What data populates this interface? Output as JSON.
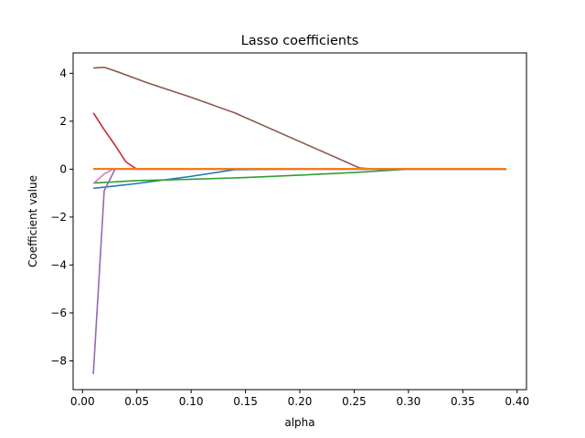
{
  "chart_data": {
    "type": "line",
    "title": "Lasso coefficients",
    "xlabel": "alpha",
    "ylabel": "Coefficient value",
    "xlim": [
      -0.0086,
      0.4086
    ],
    "ylim": [
      -9.2,
      4.85
    ],
    "xticks": [
      0.0,
      0.05,
      0.1,
      0.15,
      0.2,
      0.25,
      0.3,
      0.35,
      0.4
    ],
    "xtick_labels": [
      "0.00",
      "0.05",
      "0.10",
      "0.15",
      "0.20",
      "0.25",
      "0.30",
      "0.35",
      "0.40"
    ],
    "yticks": [
      -8,
      -6,
      -4,
      -2,
      0,
      2,
      4
    ],
    "ytick_labels": [
      "−8",
      "−6",
      "−4",
      "−2",
      "0",
      "2",
      "4"
    ],
    "grid": false,
    "legend": "none",
    "series": [
      {
        "color": "#1f77b4",
        "x": [
          0.01,
          0.05,
          0.1,
          0.14,
          0.2,
          0.3,
          0.39
        ],
        "y": [
          -0.8,
          -0.6,
          -0.3,
          -0.02,
          0.0,
          0.0,
          0.0
        ]
      },
      {
        "color": "#ff7f0e",
        "x": [
          0.01,
          0.1,
          0.2,
          0.3,
          0.39
        ],
        "y": [
          0.01,
          0.01,
          0.01,
          0.01,
          0.01
        ]
      },
      {
        "color": "#2ca02c",
        "x": [
          0.01,
          0.05,
          0.1,
          0.15,
          0.2,
          0.25,
          0.3,
          0.39
        ],
        "y": [
          -0.58,
          -0.48,
          -0.42,
          -0.35,
          -0.25,
          -0.14,
          0.0,
          0.0
        ]
      },
      {
        "color": "#d62728",
        "x": [
          0.01,
          0.02,
          0.03,
          0.04,
          0.05,
          0.1,
          0.2,
          0.39
        ],
        "y": [
          2.35,
          1.65,
          1.0,
          0.3,
          0.0,
          0.0,
          0.0,
          0.0
        ]
      },
      {
        "color": "#9467bd",
        "x": [
          0.01,
          0.02,
          0.03,
          0.1,
          0.39
        ],
        "y": [
          -8.55,
          -0.9,
          0.0,
          0.0,
          0.0
        ]
      },
      {
        "color": "#8c564b",
        "x": [
          0.01,
          0.02,
          0.03,
          0.06,
          0.1,
          0.14,
          0.2,
          0.255,
          0.27,
          0.39
        ],
        "y": [
          4.22,
          4.25,
          4.1,
          3.6,
          3.0,
          2.35,
          1.15,
          0.05,
          0.0,
          0.0
        ]
      },
      {
        "color": "#e377c2",
        "x": [
          0.01,
          0.02,
          0.028,
          0.1,
          0.39
        ],
        "y": [
          -0.6,
          -0.2,
          0.0,
          0.0,
          0.0
        ]
      },
      {
        "color": "#7f7f7f",
        "x": [
          0.01,
          0.39
        ],
        "y": [
          0.0,
          0.0
        ]
      },
      {
        "color": "#ff7f0e",
        "x": [
          0.01,
          0.05,
          0.15,
          0.25,
          0.3,
          0.39
        ],
        "y": [
          0.02,
          0.02,
          0.02,
          0.02,
          0.02,
          0.02
        ]
      }
    ]
  }
}
